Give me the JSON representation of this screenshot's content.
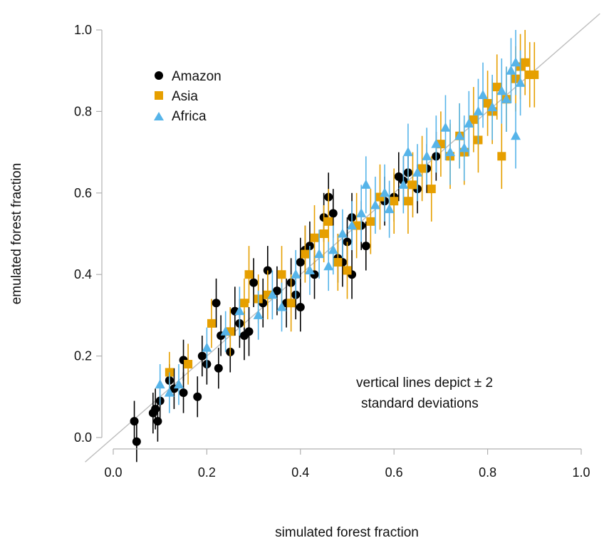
{
  "chart_data": {
    "type": "scatter",
    "xlabel": "simulated forest fraction",
    "ylabel": "emulated forest fraction",
    "xlim": [
      0.0,
      1.0
    ],
    "ylim": [
      0.0,
      1.0
    ],
    "x_ticks": [
      "0.0",
      "0.2",
      "0.4",
      "0.6",
      "0.8",
      "1.0"
    ],
    "y_ticks": [
      "0.0",
      "0.2",
      "0.4",
      "0.6",
      "0.8",
      "1.0"
    ],
    "grid": false,
    "legend_position": "top-left",
    "reference_line": "y = x",
    "annotation": [
      "vertical lines depict ± 2",
      "standard deviations"
    ],
    "series": [
      {
        "name": "Amazon",
        "marker": "circle",
        "color": "#000000",
        "points": [
          [
            0.045,
            0.04,
            0.05
          ],
          [
            0.05,
            -0.01,
            0.05
          ],
          [
            0.085,
            0.06,
            0.05
          ],
          [
            0.09,
            0.07,
            0.05
          ],
          [
            0.095,
            0.04,
            0.05
          ],
          [
            0.1,
            0.09,
            0.05
          ],
          [
            0.12,
            0.14,
            0.04
          ],
          [
            0.13,
            0.12,
            0.05
          ],
          [
            0.15,
            0.11,
            0.05
          ],
          [
            0.15,
            0.19,
            0.05
          ],
          [
            0.18,
            0.1,
            0.05
          ],
          [
            0.19,
            0.2,
            0.05
          ],
          [
            0.2,
            0.18,
            0.05
          ],
          [
            0.22,
            0.33,
            0.06
          ],
          [
            0.225,
            0.17,
            0.05
          ],
          [
            0.23,
            0.25,
            0.05
          ],
          [
            0.25,
            0.21,
            0.05
          ],
          [
            0.26,
            0.31,
            0.06
          ],
          [
            0.27,
            0.28,
            0.06
          ],
          [
            0.28,
            0.25,
            0.06
          ],
          [
            0.29,
            0.26,
            0.06
          ],
          [
            0.3,
            0.38,
            0.06
          ],
          [
            0.32,
            0.33,
            0.06
          ],
          [
            0.33,
            0.41,
            0.06
          ],
          [
            0.35,
            0.36,
            0.06
          ],
          [
            0.37,
            0.33,
            0.06
          ],
          [
            0.38,
            0.38,
            0.06
          ],
          [
            0.39,
            0.35,
            0.06
          ],
          [
            0.4,
            0.43,
            0.06
          ],
          [
            0.4,
            0.32,
            0.06
          ],
          [
            0.41,
            0.46,
            0.06
          ],
          [
            0.42,
            0.47,
            0.06
          ],
          [
            0.43,
            0.4,
            0.06
          ],
          [
            0.45,
            0.54,
            0.06
          ],
          [
            0.46,
            0.59,
            0.06
          ],
          [
            0.47,
            0.55,
            0.06
          ],
          [
            0.48,
            0.44,
            0.06
          ],
          [
            0.49,
            0.43,
            0.06
          ],
          [
            0.5,
            0.48,
            0.06
          ],
          [
            0.51,
            0.54,
            0.06
          ],
          [
            0.51,
            0.4,
            0.06
          ],
          [
            0.53,
            0.52,
            0.06
          ],
          [
            0.54,
            0.47,
            0.06
          ],
          [
            0.58,
            0.58,
            0.06
          ],
          [
            0.6,
            0.59,
            0.06
          ],
          [
            0.61,
            0.64,
            0.06
          ],
          [
            0.62,
            0.63,
            0.06
          ],
          [
            0.63,
            0.65,
            0.06
          ],
          [
            0.65,
            0.61,
            0.06
          ],
          [
            0.67,
            0.66,
            0.06
          ],
          [
            0.69,
            0.69,
            0.06
          ]
        ]
      },
      {
        "name": "Asia",
        "marker": "square",
        "color": "#E69F00",
        "points": [
          [
            0.12,
            0.16,
            0.05
          ],
          [
            0.16,
            0.18,
            0.05
          ],
          [
            0.21,
            0.28,
            0.06
          ],
          [
            0.25,
            0.26,
            0.06
          ],
          [
            0.28,
            0.33,
            0.06
          ],
          [
            0.29,
            0.4,
            0.07
          ],
          [
            0.31,
            0.34,
            0.06
          ],
          [
            0.33,
            0.35,
            0.06
          ],
          [
            0.36,
            0.4,
            0.07
          ],
          [
            0.38,
            0.33,
            0.07
          ],
          [
            0.41,
            0.45,
            0.07
          ],
          [
            0.43,
            0.49,
            0.08
          ],
          [
            0.45,
            0.5,
            0.07
          ],
          [
            0.46,
            0.53,
            0.08
          ],
          [
            0.48,
            0.43,
            0.07
          ],
          [
            0.5,
            0.41,
            0.07
          ],
          [
            0.52,
            0.52,
            0.08
          ],
          [
            0.55,
            0.53,
            0.08
          ],
          [
            0.57,
            0.59,
            0.08
          ],
          [
            0.6,
            0.58,
            0.08
          ],
          [
            0.63,
            0.58,
            0.08
          ],
          [
            0.64,
            0.62,
            0.08
          ],
          [
            0.66,
            0.66,
            0.08
          ],
          [
            0.68,
            0.61,
            0.08
          ],
          [
            0.7,
            0.72,
            0.08
          ],
          [
            0.72,
            0.69,
            0.08
          ],
          [
            0.74,
            0.74,
            0.08
          ],
          [
            0.75,
            0.7,
            0.08
          ],
          [
            0.77,
            0.78,
            0.08
          ],
          [
            0.78,
            0.73,
            0.08
          ],
          [
            0.8,
            0.82,
            0.08
          ],
          [
            0.81,
            0.8,
            0.08
          ],
          [
            0.82,
            0.86,
            0.08
          ],
          [
            0.83,
            0.69,
            0.08
          ],
          [
            0.84,
            0.83,
            0.08
          ],
          [
            0.86,
            0.88,
            0.08
          ],
          [
            0.87,
            0.91,
            0.08
          ],
          [
            0.88,
            0.92,
            0.08
          ],
          [
            0.89,
            0.89,
            0.08
          ],
          [
            0.9,
            0.89,
            0.08
          ]
        ]
      },
      {
        "name": "Africa",
        "marker": "triangle",
        "color": "#56B4E9",
        "points": [
          [
            0.1,
            0.13,
            0.05
          ],
          [
            0.12,
            0.11,
            0.05
          ],
          [
            0.14,
            0.13,
            0.05
          ],
          [
            0.2,
            0.22,
            0.05
          ],
          [
            0.24,
            0.26,
            0.05
          ],
          [
            0.27,
            0.31,
            0.06
          ],
          [
            0.31,
            0.3,
            0.06
          ],
          [
            0.34,
            0.35,
            0.06
          ],
          [
            0.36,
            0.32,
            0.06
          ],
          [
            0.39,
            0.4,
            0.06
          ],
          [
            0.42,
            0.41,
            0.06
          ],
          [
            0.44,
            0.45,
            0.06
          ],
          [
            0.46,
            0.42,
            0.06
          ],
          [
            0.47,
            0.46,
            0.06
          ],
          [
            0.49,
            0.5,
            0.06
          ],
          [
            0.51,
            0.52,
            0.06
          ],
          [
            0.53,
            0.55,
            0.07
          ],
          [
            0.54,
            0.62,
            0.07
          ],
          [
            0.56,
            0.57,
            0.07
          ],
          [
            0.58,
            0.6,
            0.07
          ],
          [
            0.59,
            0.56,
            0.07
          ],
          [
            0.62,
            0.62,
            0.07
          ],
          [
            0.63,
            0.7,
            0.07
          ],
          [
            0.65,
            0.65,
            0.07
          ],
          [
            0.67,
            0.69,
            0.07
          ],
          [
            0.69,
            0.72,
            0.07
          ],
          [
            0.71,
            0.76,
            0.08
          ],
          [
            0.72,
            0.7,
            0.08
          ],
          [
            0.74,
            0.74,
            0.08
          ],
          [
            0.75,
            0.71,
            0.08
          ],
          [
            0.76,
            0.77,
            0.08
          ],
          [
            0.78,
            0.8,
            0.08
          ],
          [
            0.79,
            0.84,
            0.08
          ],
          [
            0.81,
            0.81,
            0.08
          ],
          [
            0.83,
            0.85,
            0.08
          ],
          [
            0.84,
            0.83,
            0.08
          ],
          [
            0.85,
            0.9,
            0.08
          ],
          [
            0.86,
            0.92,
            0.08
          ],
          [
            0.86,
            0.74,
            0.08
          ],
          [
            0.87,
            0.87,
            0.08
          ]
        ]
      }
    ]
  }
}
